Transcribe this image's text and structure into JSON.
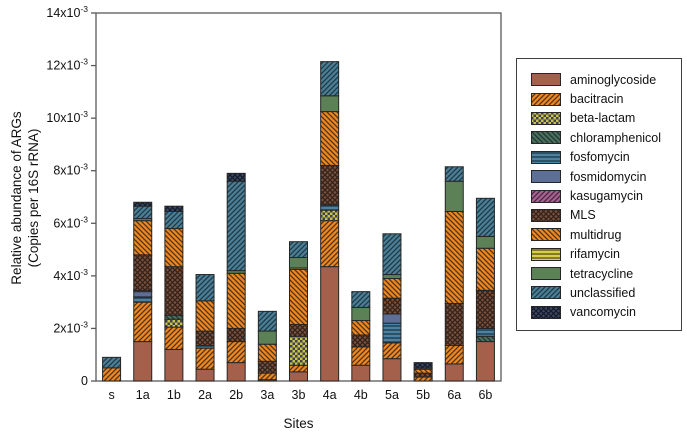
{
  "figure": {
    "x_axis_title": "Sites",
    "y_axis_title_line1": "Relative abundance of ARGs",
    "y_axis_title_line2": "(Copies per 16S rRNA)"
  },
  "chart_data": {
    "type": "bar",
    "stacked": true,
    "orientation": "vertical",
    "grid": false,
    "legend_position": "right",
    "xlabel": "Sites",
    "ylabel": "Relative abundance of ARGs (Copies per 16S rRNA)",
    "unit_note": "values are in units of 10^-3 copies per 16S rRNA",
    "ylim": [
      0,
      14
    ],
    "ytick_step": 2,
    "yticks": [
      {
        "base": "0",
        "sup": ""
      },
      {
        "base": "2x10",
        "sup": "-3"
      },
      {
        "base": "4x10",
        "sup": "-3"
      },
      {
        "base": "6x10",
        "sup": "-3"
      },
      {
        "base": "8x10",
        "sup": "-3"
      },
      {
        "base": "10x10",
        "sup": "-3"
      },
      {
        "base": "12x10",
        "sup": "-3"
      },
      {
        "base": "14x10",
        "sup": "-3"
      }
    ],
    "categories": [
      "s",
      "1a",
      "1b",
      "2a",
      "2b",
      "3a",
      "3b",
      "4a",
      "4b",
      "5a",
      "5b",
      "6a",
      "6b"
    ],
    "series": [
      {
        "key": "aminoglycoside",
        "label": "aminoglycoside",
        "color": "#A4604B",
        "hatch_color": "",
        "pattern": "solid",
        "values": [
          0,
          1.5,
          1.2,
          0.45,
          0.7,
          0.05,
          0.35,
          4.35,
          0.6,
          0.85,
          0,
          0.65,
          1.5
        ]
      },
      {
        "key": "bacitracin",
        "label": "bacitracin",
        "color": "#EE8722",
        "hatch_color": "#4D3213",
        "pattern": "diag-up",
        "values": [
          0.5,
          1.5,
          0.85,
          0.8,
          0.8,
          0.25,
          0.25,
          1.75,
          0.7,
          0.6,
          0.15,
          0.7,
          0
        ]
      },
      {
        "key": "beta-lactam",
        "label": "beta-lactam",
        "color": "#C9C53D",
        "hatch_color": "#413F55",
        "pattern": "checker",
        "values": [
          0,
          0,
          0.3,
          0,
          0,
          0,
          1.1,
          0.4,
          0,
          0,
          0,
          0,
          0
        ]
      },
      {
        "key": "chloramphenicol",
        "label": "chloramphenicol",
        "color": "#49715A",
        "hatch_color": "#23343B",
        "pattern": "diag-down",
        "values": [
          0,
          0,
          0.15,
          0,
          0,
          0,
          0,
          0,
          0,
          0,
          0,
          0,
          0.2
        ]
      },
      {
        "key": "fosfomycin",
        "label": "fosfomycin",
        "color": "#4E80A0",
        "hatch_color": "#1E3C4E",
        "pattern": "hlines",
        "values": [
          0,
          0.2,
          0,
          0.1,
          0,
          0,
          0,
          0.2,
          0,
          0.75,
          0,
          0,
          0.3
        ]
      },
      {
        "key": "fosmidomycin",
        "label": "fosmidomycin",
        "color": "#5D6F96",
        "hatch_color": "",
        "pattern": "solid",
        "values": [
          0,
          0.2,
          0,
          0,
          0,
          0,
          0,
          0,
          0,
          0.35,
          0,
          0,
          0
        ]
      },
      {
        "key": "kasugamycin",
        "label": "kasugamycin",
        "color": "#A5638F",
        "hatch_color": "#4A2440",
        "pattern": "diag-up",
        "values": [
          0,
          0.05,
          0,
          0,
          0,
          0,
          0,
          0,
          0,
          0,
          0,
          0,
          0
        ]
      },
      {
        "key": "MLS",
        "label": "MLS",
        "color": "#7A523C",
        "hatch_color": "#33211A",
        "pattern": "cross-diag",
        "values": [
          0,
          1.35,
          1.85,
          0.55,
          0.5,
          0.45,
          0.45,
          1.5,
          0.45,
          0.6,
          0.15,
          1.6,
          1.45
        ]
      },
      {
        "key": "multidrug",
        "label": "multidrug",
        "color": "#EE8722",
        "hatch_color": "#4D3213",
        "pattern": "diag-down",
        "values": [
          0,
          1.3,
          1.45,
          1.15,
          2.1,
          0.65,
          2.1,
          2.05,
          0.55,
          0.75,
          0.15,
          3.5,
          1.6
        ]
      },
      {
        "key": "rifamycin",
        "label": "rifamycin",
        "color": "#D9CE4A",
        "hatch_color": "#5C5722",
        "pattern": "hlines",
        "values": [
          0,
          0,
          0,
          0,
          0,
          0,
          0.05,
          0,
          0,
          0,
          0,
          0,
          0
        ]
      },
      {
        "key": "tetracycline",
        "label": "tetracycline",
        "color": "#5C8157",
        "hatch_color": "",
        "pattern": "solid",
        "values": [
          0,
          0.08,
          0,
          0,
          0.1,
          0.5,
          0.4,
          0.6,
          0.5,
          0.15,
          0,
          1.15,
          0.45
        ]
      },
      {
        "key": "unclassified",
        "label": "unclassified",
        "color": "#4C7F96",
        "hatch_color": "#1C3945",
        "pattern": "diag-up",
        "values": [
          0.4,
          0.47,
          0.65,
          1.0,
          3.4,
          0.75,
          0.6,
          1.3,
          0.6,
          1.55,
          0.05,
          0.55,
          1.45
        ]
      },
      {
        "key": "vancomycin",
        "label": "vancomycin",
        "color": "#3C4962",
        "hatch_color": "#141B2B",
        "pattern": "cross-diag",
        "values": [
          0,
          0.15,
          0.2,
          0,
          0.3,
          0,
          0,
          0,
          0,
          0,
          0.2,
          0,
          0
        ]
      }
    ],
    "bar_totals_x1e3": [
      0.9,
      6.8,
      6.65,
      4.05,
      7.9,
      2.65,
      5.3,
      12.15,
      3.4,
      5.6,
      0.7,
      8.15,
      6.95
    ]
  },
  "layout_colors": {
    "frame": "#595959",
    "bar_stroke": "#262626",
    "text": "#111111"
  }
}
